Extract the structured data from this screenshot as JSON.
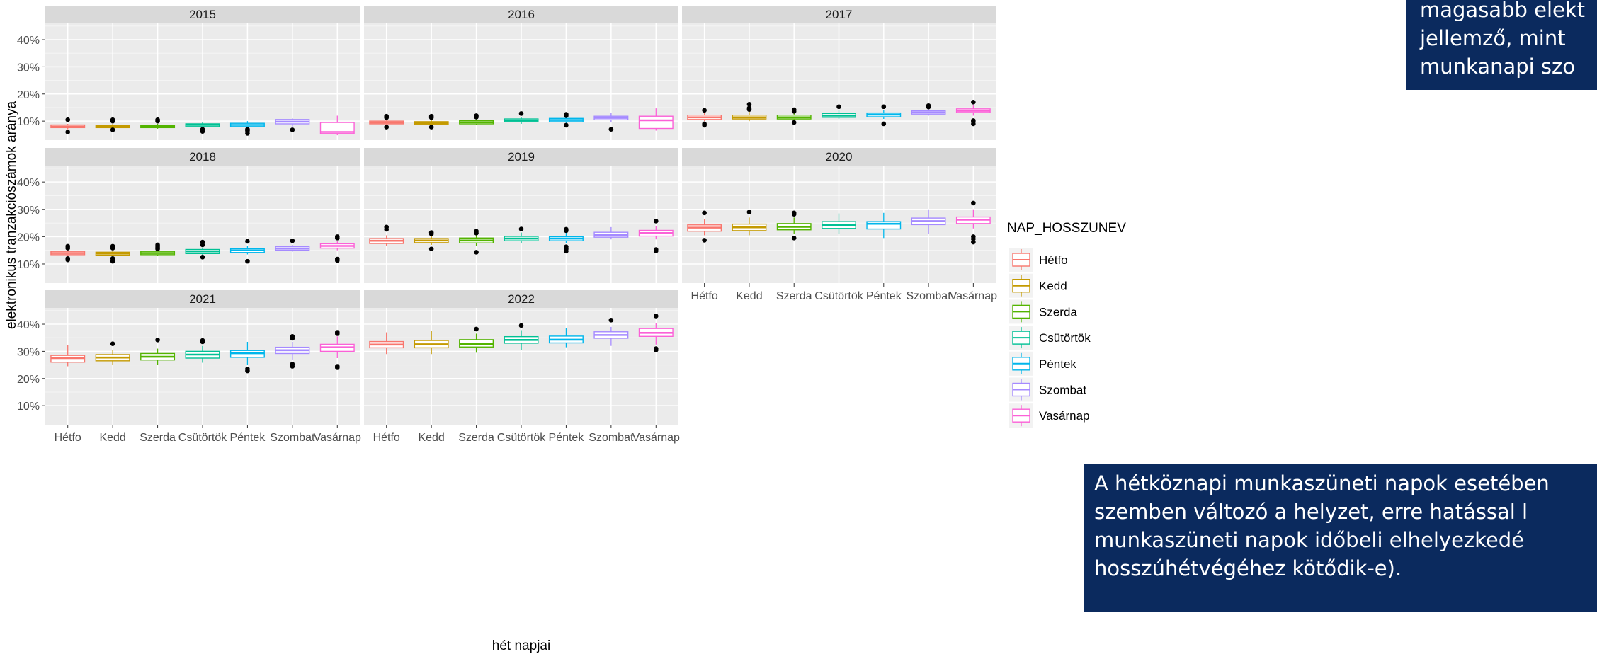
{
  "chart_data": {
    "type": "boxplot",
    "facet_by": "year",
    "xlabel": "hét napjai",
    "ylabel": "elektronikus tranzakciószámok aránya",
    "y_tick_labels": [
      "10%",
      "20%",
      "30%",
      "40%"
    ],
    "y_ticks": [
      10,
      20,
      30,
      40
    ],
    "ylim": [
      3,
      46
    ],
    "categories": [
      "Hétfo",
      "Kedd",
      "Szerda",
      "Csütörtök",
      "Péntek",
      "Szombat",
      "Vasárnap"
    ],
    "colors": [
      "#F8766D",
      "#C49A00",
      "#53B400",
      "#00C094",
      "#00B6EB",
      "#A58AFF",
      "#FB61D7"
    ],
    "legend_title": "NAP_HOSSZUNEV",
    "legend_position": "right",
    "grid": true,
    "panels": [
      {
        "label": "2015",
        "boxes": [
          {
            "q1": 7.6,
            "median": 8.0,
            "q3": 8.6,
            "low": 7.0,
            "high": 9.0,
            "outliers": [
              10.5,
              6.0
            ]
          },
          {
            "q1": 7.6,
            "median": 8.0,
            "q3": 8.5,
            "low": 7.2,
            "high": 9.0,
            "outliers": [
              10.5,
              10.0,
              6.8
            ]
          },
          {
            "q1": 7.6,
            "median": 8.0,
            "q3": 8.5,
            "low": 7.2,
            "high": 9.0,
            "outliers": [
              10.5,
              10.0
            ]
          },
          {
            "q1": 8.0,
            "median": 8.6,
            "q3": 9.0,
            "low": 7.4,
            "high": 9.6,
            "outliers": [
              7.0,
              6.2
            ]
          },
          {
            "q1": 8.0,
            "median": 8.6,
            "q3": 9.2,
            "low": 7.5,
            "high": 10.0,
            "outliers": [
              7.0,
              6.5,
              5.5
            ]
          },
          {
            "q1": 9.0,
            "median": 9.8,
            "q3": 10.6,
            "low": 8.0,
            "high": 11.0,
            "outliers": [
              6.8
            ]
          },
          {
            "q1": 5.4,
            "median": 6.0,
            "q3": 9.5,
            "low": 4.8,
            "high": 12.0,
            "outliers": []
          }
        ]
      },
      {
        "label": "2016",
        "boxes": [
          {
            "q1": 9.0,
            "median": 9.5,
            "q3": 10.0,
            "low": 8.6,
            "high": 10.6,
            "outliers": [
              11.8,
              11.3,
              7.8
            ]
          },
          {
            "q1": 8.8,
            "median": 9.3,
            "q3": 9.8,
            "low": 8.4,
            "high": 10.4,
            "outliers": [
              11.8,
              11.3,
              7.8
            ]
          },
          {
            "q1": 9.0,
            "median": 9.6,
            "q3": 10.2,
            "low": 8.5,
            "high": 10.8,
            "outliers": [
              12.0,
              11.5
            ]
          },
          {
            "q1": 9.7,
            "median": 10.2,
            "q3": 10.8,
            "low": 9.0,
            "high": 11.5,
            "outliers": [
              12.8
            ]
          },
          {
            "q1": 9.8,
            "median": 10.4,
            "q3": 11.0,
            "low": 9.0,
            "high": 11.7,
            "outliers": [
              12.5,
              12.0,
              8.5
            ]
          },
          {
            "q1": 10.5,
            "median": 11.2,
            "q3": 11.8,
            "low": 9.5,
            "high": 13.0,
            "outliers": [
              7.0
            ]
          },
          {
            "q1": 7.3,
            "median": 10.3,
            "q3": 11.8,
            "low": 6.5,
            "high": 14.7,
            "outliers": []
          }
        ]
      },
      {
        "label": "2017",
        "boxes": [
          {
            "q1": 10.6,
            "median": 11.4,
            "q3": 12.2,
            "low": 10.0,
            "high": 13.0,
            "outliers": [
              14.0,
              9.0,
              8.5
            ]
          },
          {
            "q1": 10.8,
            "median": 11.4,
            "q3": 12.2,
            "low": 10.0,
            "high": 13.5,
            "outliers": [
              16.2,
              14.8,
              14.3
            ]
          },
          {
            "q1": 10.8,
            "median": 11.4,
            "q3": 12.2,
            "low": 10.2,
            "high": 13.0,
            "outliers": [
              14.2,
              13.6,
              9.5
            ]
          },
          {
            "q1": 11.4,
            "median": 12.0,
            "q3": 12.8,
            "low": 10.8,
            "high": 14.0,
            "outliers": [
              15.3
            ]
          },
          {
            "q1": 11.6,
            "median": 12.4,
            "q3": 13.0,
            "low": 10.8,
            "high": 14.0,
            "outliers": [
              15.3,
              9.0
            ]
          },
          {
            "q1": 12.6,
            "median": 13.2,
            "q3": 13.8,
            "low": 12.0,
            "high": 15.0,
            "outliers": [
              15.7,
              15.2
            ]
          },
          {
            "q1": 13.2,
            "median": 13.8,
            "q3": 14.5,
            "low": 12.0,
            "high": 16.0,
            "outliers": [
              17.0,
              10.2,
              9.8,
              9.0
            ]
          }
        ]
      },
      {
        "label": "2018",
        "boxes": [
          {
            "q1": 13.4,
            "median": 14.0,
            "q3": 14.6,
            "low": 13.0,
            "high": 15.2,
            "outliers": [
              16.5,
              15.8,
              12.0,
              11.5
            ]
          },
          {
            "q1": 13.2,
            "median": 13.8,
            "q3": 14.3,
            "low": 12.8,
            "high": 14.8,
            "outliers": [
              16.5,
              15.8,
              12.0,
              11.0
            ]
          },
          {
            "q1": 13.4,
            "median": 14.0,
            "q3": 14.6,
            "low": 12.9,
            "high": 15.2,
            "outliers": [
              17.0,
              16.5,
              16.0,
              15.5
            ]
          },
          {
            "q1": 13.8,
            "median": 14.6,
            "q3": 15.3,
            "low": 13.2,
            "high": 16.0,
            "outliers": [
              18.0,
              17.0,
              12.5
            ]
          },
          {
            "q1": 14.2,
            "median": 15.0,
            "q3": 15.6,
            "low": 13.5,
            "high": 16.5,
            "outliers": [
              18.3,
              11.0
            ]
          },
          {
            "q1": 15.0,
            "median": 15.6,
            "q3": 16.3,
            "low": 14.5,
            "high": 17.0,
            "outliers": [
              18.5
            ]
          },
          {
            "q1": 15.8,
            "median": 16.6,
            "q3": 17.4,
            "low": 15.0,
            "high": 18.5,
            "outliers": [
              20.0,
              19.5,
              11.8,
              11.3
            ]
          }
        ]
      },
      {
        "label": "2019",
        "boxes": [
          {
            "q1": 17.5,
            "median": 18.5,
            "q3": 19.3,
            "low": 16.5,
            "high": 20.5,
            "outliers": [
              23.5,
              22.7
            ]
          },
          {
            "q1": 17.8,
            "median": 18.6,
            "q3": 19.3,
            "low": 17.0,
            "high": 20.3,
            "outliers": [
              21.5,
              21.0,
              15.5
            ]
          },
          {
            "q1": 17.7,
            "median": 18.6,
            "q3": 19.5,
            "low": 16.5,
            "high": 20.8,
            "outliers": [
              22.0,
              21.3,
              14.3
            ]
          },
          {
            "q1": 18.5,
            "median": 19.3,
            "q3": 20.1,
            "low": 17.5,
            "high": 21.5,
            "outliers": [
              22.8
            ]
          },
          {
            "q1": 18.5,
            "median": 19.3,
            "q3": 20.0,
            "low": 17.5,
            "high": 21.5,
            "outliers": [
              22.7,
              22.2,
              16.3,
              15.5,
              14.7
            ]
          },
          {
            "q1": 19.8,
            "median": 20.7,
            "q3": 21.6,
            "low": 19.0,
            "high": 23.5,
            "outliers": []
          },
          {
            "q1": 20.2,
            "median": 21.3,
            "q3": 22.3,
            "low": 19.0,
            "high": 24.0,
            "outliers": [
              25.7,
              15.3,
              14.8
            ]
          }
        ]
      },
      {
        "label": "2020",
        "boxes": [
          {
            "q1": 22.0,
            "median": 23.3,
            "q3": 24.3,
            "low": 20.5,
            "high": 26.5,
            "outliers": [
              28.7,
              18.7
            ]
          },
          {
            "q1": 22.2,
            "median": 23.4,
            "q3": 24.6,
            "low": 20.5,
            "high": 27.0,
            "outliers": [
              29.0
            ]
          },
          {
            "q1": 22.5,
            "median": 23.6,
            "q3": 24.8,
            "low": 21.0,
            "high": 27.0,
            "outliers": [
              28.7,
              28.2,
              19.5
            ]
          },
          {
            "q1": 23.0,
            "median": 24.3,
            "q3": 25.5,
            "low": 21.0,
            "high": 28.5,
            "outliers": []
          },
          {
            "q1": 22.8,
            "median": 24.7,
            "q3": 25.5,
            "low": 19.5,
            "high": 28.7,
            "outliers": []
          },
          {
            "q1": 24.4,
            "median": 25.7,
            "q3": 26.8,
            "low": 21.0,
            "high": 30.0,
            "outliers": []
          },
          {
            "q1": 24.8,
            "median": 26.2,
            "q3": 27.2,
            "low": 23.0,
            "high": 30.0,
            "outliers": [
              32.3,
              20.0,
              19.2,
              18.0
            ]
          }
        ]
      },
      {
        "label": "2021",
        "boxes": [
          {
            "q1": 26.0,
            "median": 27.5,
            "q3": 28.5,
            "low": 24.5,
            "high": 32.3,
            "outliers": []
          },
          {
            "q1": 26.5,
            "median": 27.7,
            "q3": 28.8,
            "low": 25.0,
            "high": 30.5,
            "outliers": [
              32.8
            ]
          },
          {
            "q1": 26.8,
            "median": 28.0,
            "q3": 29.2,
            "low": 25.0,
            "high": 31.0,
            "outliers": [
              34.2
            ]
          },
          {
            "q1": 27.5,
            "median": 28.8,
            "q3": 30.0,
            "low": 25.8,
            "high": 32.0,
            "outliers": [
              34.0,
              33.5
            ]
          },
          {
            "q1": 27.8,
            "median": 29.3,
            "q3": 30.3,
            "low": 25.0,
            "high": 33.5,
            "outliers": [
              23.5,
              22.8
            ]
          },
          {
            "q1": 29.2,
            "median": 30.4,
            "q3": 31.5,
            "low": 27.0,
            "high": 33.5,
            "outliers": [
              35.5,
              34.8,
              25.3,
              24.5
            ]
          },
          {
            "q1": 30.0,
            "median": 31.5,
            "q3": 32.6,
            "low": 27.5,
            "high": 35.5,
            "outliers": [
              37.0,
              36.5,
              24.5,
              24.0
            ]
          }
        ]
      },
      {
        "label": "2022",
        "boxes": [
          {
            "q1": 31.3,
            "median": 32.5,
            "q3": 33.6,
            "low": 29.0,
            "high": 37.0,
            "outliers": []
          },
          {
            "q1": 31.3,
            "median": 32.6,
            "q3": 34.0,
            "low": 29.0,
            "high": 37.5,
            "outliers": []
          },
          {
            "q1": 31.6,
            "median": 32.8,
            "q3": 34.3,
            "low": 29.5,
            "high": 36.5,
            "outliers": [
              38.2
            ]
          },
          {
            "q1": 33.0,
            "median": 34.2,
            "q3": 35.4,
            "low": 30.5,
            "high": 37.8,
            "outliers": [
              39.5
            ]
          },
          {
            "q1": 33.1,
            "median": 34.3,
            "q3": 35.6,
            "low": 31.5,
            "high": 38.5,
            "outliers": []
          },
          {
            "q1": 34.8,
            "median": 36.0,
            "q3": 37.2,
            "low": 32.0,
            "high": 39.0,
            "outliers": [
              41.5
            ]
          },
          {
            "q1": 35.5,
            "median": 36.8,
            "q3": 38.4,
            "low": 32.5,
            "high": 40.5,
            "outliers": [
              43.0,
              31.0,
              30.5
            ]
          }
        ]
      }
    ]
  },
  "callouts": {
    "top_lines": [
      "magasabb elekt",
      "jellemző, mint",
      "munkanapi szo"
    ],
    "bottom_lines": [
      "A hétköznapi munkaszüneti napok esetében",
      "szemben változó a helyzet, erre hatással l",
      "munkaszüneti napok időbeli elhelyezkedé",
      "hosszúhétvégéhez kötődik-e)."
    ],
    "background": "#0b2a5e"
  }
}
